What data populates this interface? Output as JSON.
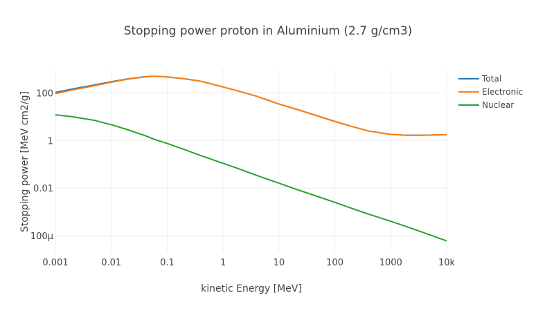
{
  "chart_data": {
    "type": "line",
    "title": "Stopping power proton in Aluminium (2.7 g/cm3)",
    "xlabel": "kinetic Energy [MeV]",
    "ylabel": "Stopping power [MeV cm2/g]",
    "xscale": "log",
    "yscale": "log",
    "xlim": [
      0.001,
      10000
    ],
    "ylim": [
      2e-05,
      1000
    ],
    "grid": true,
    "legend_position": "top-right",
    "x_ticks": [
      {
        "value": 0.001,
        "label": "0.001"
      },
      {
        "value": 0.01,
        "label": "0.01"
      },
      {
        "value": 0.1,
        "label": "0.1"
      },
      {
        "value": 1,
        "label": "1"
      },
      {
        "value": 10,
        "label": "10"
      },
      {
        "value": 100,
        "label": "100"
      },
      {
        "value": 1000,
        "label": "1000"
      },
      {
        "value": 10000,
        "label": "10k"
      }
    ],
    "y_ticks": [
      {
        "value": 100,
        "label": "100"
      },
      {
        "value": 1,
        "label": "1"
      },
      {
        "value": 0.01,
        "label": "0.01"
      },
      {
        "value": 0.0001,
        "label": "100μ"
      }
    ],
    "x": [
      0.001,
      0.002,
      0.005,
      0.01,
      0.02,
      0.04,
      0.06,
      0.1,
      0.2,
      0.4,
      1,
      2,
      4,
      10,
      20,
      40,
      100,
      200,
      400,
      1000,
      2000,
      4000,
      10000
    ],
    "series": [
      {
        "name": "Total",
        "color": "#1f77b4",
        "values": [
          105,
          145,
          215,
          295,
          390,
          480,
          505,
          470,
          395,
          310,
          178,
          115,
          72,
          34,
          21,
          12.5,
          6.3,
          3.9,
          2.5,
          1.8,
          1.65,
          1.66,
          1.75
        ]
      },
      {
        "name": "Electronic",
        "color": "#ff7f0e",
        "values": [
          93,
          132,
          200,
          280,
          380,
          470,
          500,
          468,
          393,
          309,
          177,
          115,
          72,
          34,
          21,
          12.5,
          6.3,
          3.9,
          2.5,
          1.8,
          1.65,
          1.66,
          1.75
        ]
      },
      {
        "name": "Nuclear",
        "color": "#2ca02c",
        "values": [
          12,
          10,
          7,
          4.6,
          2.8,
          1.6,
          1.1,
          0.75,
          0.42,
          0.23,
          0.11,
          0.062,
          0.034,
          0.016,
          0.009,
          0.0052,
          0.0025,
          0.0014,
          0.0008,
          0.0004,
          0.00023,
          0.00013,
          6e-05
        ]
      }
    ]
  }
}
